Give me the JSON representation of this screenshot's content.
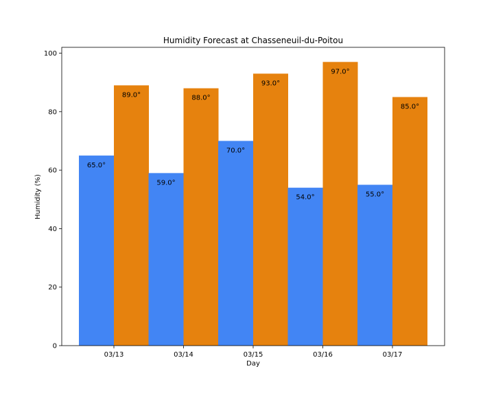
{
  "chart_data": {
    "type": "bar",
    "title": "Humidity Forecast at Chasseneuil-du-Poitou",
    "xlabel": "Day",
    "ylabel": "Humidity (%)",
    "categories": [
      "03/13",
      "03/14",
      "03/15",
      "03/16",
      "03/17"
    ],
    "series": [
      {
        "values": [
          65.0,
          59.0,
          70.0,
          54.0,
          55.0
        ],
        "labels": [
          "65.0°",
          "59.0°",
          "70.0°",
          "54.0°",
          "55.0°"
        ],
        "color": "#4285f4"
      },
      {
        "values": [
          89.0,
          88.0,
          93.0,
          97.0,
          85.0
        ],
        "labels": [
          "89.0°",
          "88.0°",
          "93.0°",
          "97.0°",
          "85.0°"
        ],
        "color": "#e6820e"
      }
    ],
    "yticks": [
      0,
      20,
      40,
      60,
      80,
      100
    ],
    "ylim": [
      0,
      102
    ],
    "grid": false,
    "legend": "none"
  }
}
